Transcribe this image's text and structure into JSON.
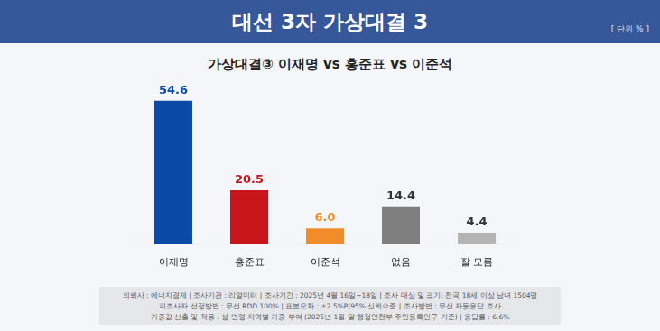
{
  "header": {
    "title": "대선 3자 가상대결 3",
    "unit": "[ 단위 % ]"
  },
  "chart_data": {
    "type": "bar",
    "title": "가상대결③ 이재명 vs 홍준표 vs 이준석",
    "categories": [
      "이재명",
      "홍준표",
      "이준석",
      "없음",
      "잘 모름"
    ],
    "values": [
      54.6,
      20.5,
      6.0,
      14.4,
      4.4
    ],
    "value_labels": [
      "54.6",
      "20.5",
      "6.0",
      "14.4",
      "4.4"
    ],
    "colors": [
      "#0a4aa6",
      "#c8141b",
      "#f08c2a",
      "#7f7f7f",
      "#b4b4b4"
    ],
    "ylim": [
      0,
      60
    ],
    "grid": false,
    "data_labels": true,
    "tick_labels": "x"
  },
  "footnote": [
    "의뢰사 : 에너지경제 | 조사기관 : 리얼미터 | 조사기간 : 2025년 4월 16일~18일 | 조사 대상 및 크기: 전국 18세 이상 남녀 1504명",
    "피조사자 선정방법 : 무선 RDD 100% | 표본오차 : ±2.5%P(95% 신뢰수준 | 조사방법 : 무선 자동응답 조사",
    "가중값 산출 및 적용 : 성·연령·지역별 가중 부여 (2025년 1월 말 행정안전부 주민등록인구 기준) | 응답률 : 6.6%"
  ]
}
